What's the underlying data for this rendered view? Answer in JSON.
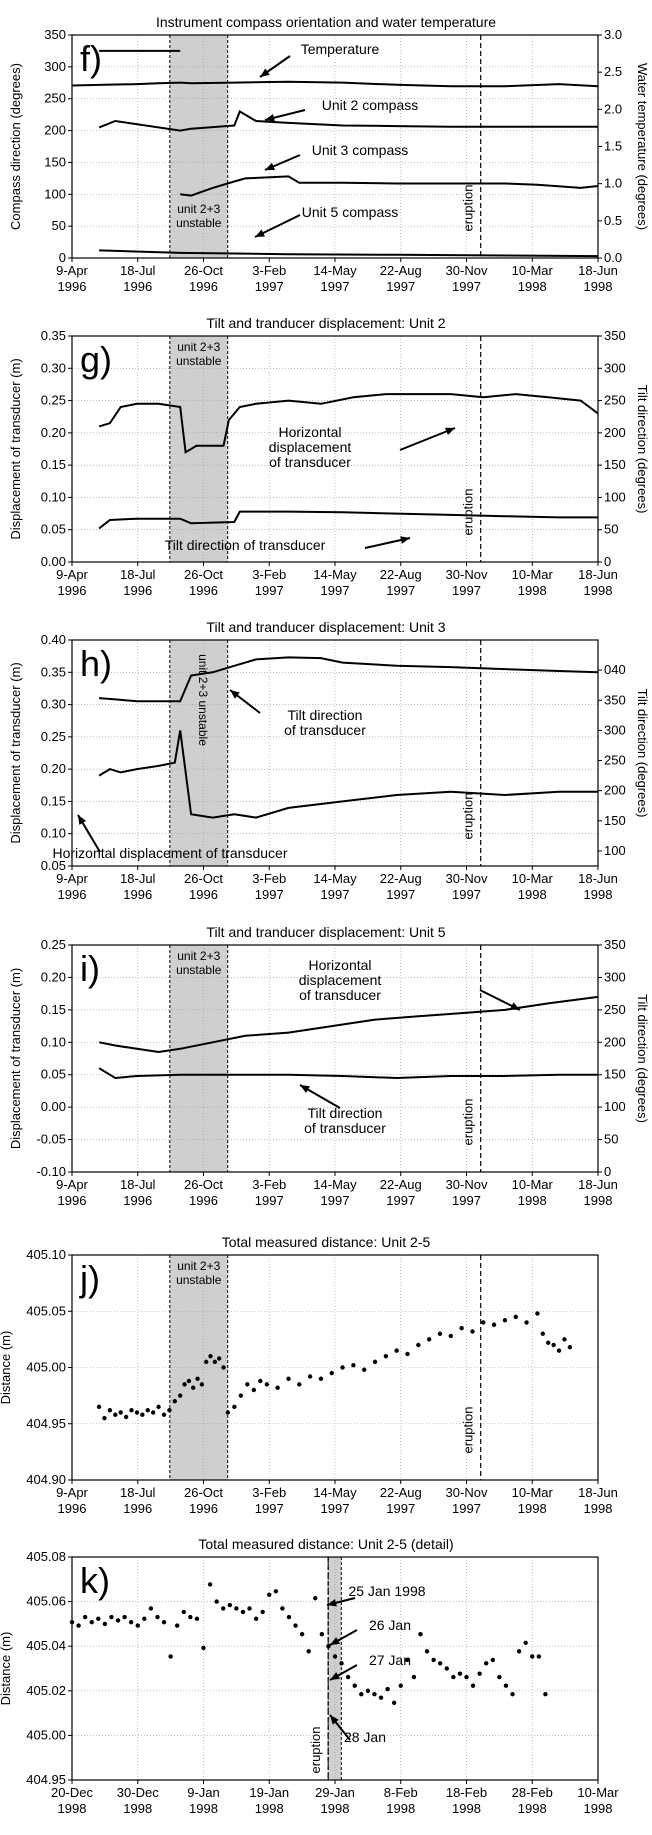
{
  "chart_data": [
    {
      "id": "f",
      "type": "line",
      "title": "Instrument compass orientation and water temperature",
      "panel_label": "f)",
      "ylabel": "Compass direction (degrees)",
      "ylabel_right": "Water temperature (degrees)",
      "ylim": [
        0,
        350
      ],
      "ylim_right": [
        0,
        3.0
      ],
      "y_ticks": [
        "0",
        "50",
        "100",
        "150",
        "200",
        "250",
        "300",
        "350"
      ],
      "y_ticks_right": [
        "0.0",
        "0.5",
        "1.0",
        "1.5",
        "2.0",
        "2.5",
        "3.0"
      ],
      "x_ticks": [
        [
          "9-Apr",
          "1996"
        ],
        [
          "18-Jul",
          "1996"
        ],
        [
          "26-Oct",
          "1996"
        ],
        [
          "3-Feb",
          "1997"
        ],
        [
          "14-May",
          "1997"
        ],
        [
          "22-Aug",
          "1997"
        ],
        [
          "30-Nov",
          "1997"
        ],
        [
          "10-Mar",
          "1998"
        ],
        [
          "18-Jun",
          "1998"
        ]
      ],
      "unstable_label": [
        "unit 2+3",
        "unstable"
      ],
      "eruption_label": "eruption",
      "annotations": [
        "Temperature",
        "Unit 2 compass",
        "Unit 3 compass",
        "Unit 5 compass"
      ],
      "series": [
        {
          "name": "Temperature",
          "axis": "right",
          "x": [
            0,
            30,
            60,
            80,
            100,
            110,
            150,
            200,
            250,
            300,
            350,
            400,
            450,
            486
          ],
          "y": [
            2.32,
            2.33,
            2.34,
            2.35,
            2.36,
            2.35,
            2.36,
            2.37,
            2.36,
            2.33,
            2.31,
            2.31,
            2.34,
            2.31
          ]
        },
        {
          "name": "Unit 2 compass",
          "axis": "left",
          "x": [
            25,
            40,
            100,
            110,
            150,
            155,
            170,
            200,
            250,
            300,
            350,
            400,
            486
          ],
          "y": [
            205,
            215,
            200,
            203,
            208,
            230,
            215,
            212,
            208,
            207,
            206,
            206,
            206
          ]
        },
        {
          "name": "Unit 3 compass",
          "axis": "left",
          "x": [
            100,
            110,
            130,
            150,
            160,
            200,
            210,
            250,
            300,
            350,
            400,
            430,
            470,
            486
          ],
          "y": [
            100,
            98,
            110,
            120,
            125,
            128,
            118,
            118,
            117,
            117,
            117,
            115,
            110,
            113
          ]
        },
        {
          "name": "Unit 5 compass",
          "axis": "left",
          "x": [
            25,
            100,
            200,
            300,
            400,
            486
          ],
          "y": [
            12,
            8,
            6,
            5,
            4,
            3
          ]
        },
        {
          "name": "",
          "axis": "left",
          "x": [
            25,
            100
          ],
          "y": [
            325,
            325
          ]
        }
      ]
    },
    {
      "id": "g",
      "type": "line",
      "title": "Tilt and tranducer displacement: Unit 2",
      "panel_label": "g)",
      "ylabel": "Displacement of transducer (m)",
      "ylabel_right": "Tilt direction (degrees)",
      "ylim": [
        0,
        0.35
      ],
      "ylim_right": [
        0,
        350
      ],
      "y_ticks": [
        "0.00",
        "0.05",
        "0.10",
        "0.15",
        "0.20",
        "0.25",
        "0.30",
        "0.35"
      ],
      "y_ticks_right": [
        "0",
        "50",
        "100",
        "150",
        "200",
        "250",
        "300",
        "350"
      ],
      "x_ticks": [
        [
          "9-Apr",
          "1996"
        ],
        [
          "18-Jul",
          "1996"
        ],
        [
          "26-Oct",
          "1996"
        ],
        [
          "3-Feb",
          "1997"
        ],
        [
          "14-May",
          "1997"
        ],
        [
          "22-Aug",
          "1997"
        ],
        [
          "30-Nov",
          "1997"
        ],
        [
          "10-Mar",
          "1998"
        ],
        [
          "18-Jun",
          "1998"
        ]
      ],
      "unstable_label": [
        "unit 2+3",
        "unstable"
      ],
      "eruption_label": "eruption",
      "annotations": [
        "Horizontal",
        "displacement",
        "of transducer",
        "Tilt direction of transducer"
      ],
      "series": [
        {
          "name": "Horizontal displacement of transducer",
          "axis": "left",
          "x": [
            25,
            35,
            45,
            60,
            80,
            100,
            105,
            115,
            140,
            145,
            155,
            170,
            200,
            230,
            260,
            290,
            320,
            350,
            380,
            410,
            440,
            470,
            486
          ],
          "y": [
            0.21,
            0.215,
            0.24,
            0.245,
            0.245,
            0.24,
            0.17,
            0.18,
            0.18,
            0.22,
            0.24,
            0.245,
            0.25,
            0.245,
            0.255,
            0.26,
            0.26,
            0.26,
            0.255,
            0.26,
            0.255,
            0.25,
            0.23
          ]
        },
        {
          "name": "Tilt direction of transducer",
          "axis": "left",
          "x": [
            25,
            35,
            60,
            100,
            110,
            150,
            155,
            200,
            250,
            300,
            350,
            400,
            450,
            486
          ],
          "y": [
            0.052,
            0.065,
            0.067,
            0.067,
            0.06,
            0.062,
            0.078,
            0.078,
            0.077,
            0.075,
            0.073,
            0.071,
            0.069,
            0.069
          ]
        }
      ]
    },
    {
      "id": "h",
      "type": "line",
      "title": "Tilt and tranducer displacement: Unit 3",
      "panel_label": "h)",
      "ylabel": "Displacement of transducer (m)",
      "ylabel_right": "Tilt direction (degrees)",
      "ylim": [
        0.05,
        0.4
      ],
      "y_ticks": [
        "0.05",
        "0.10",
        "0.15",
        "0.20",
        "0.25",
        "0.30",
        "0.35",
        "0.40"
      ],
      "y_ticks_right": [
        "100",
        "150",
        "200",
        "250",
        "300",
        "350",
        "040"
      ],
      "x_ticks": [
        [
          "9-Apr",
          "1996"
        ],
        [
          "18-Jul",
          "1996"
        ],
        [
          "26-Oct",
          "1996"
        ],
        [
          "3-Feb",
          "1997"
        ],
        [
          "14-May",
          "1997"
        ],
        [
          "22-Aug",
          "1997"
        ],
        [
          "30-Nov",
          "1997"
        ],
        [
          "10-Mar",
          "1998"
        ],
        [
          "18-Jun",
          "1998"
        ]
      ],
      "unstable_label": [
        "unit 2+3",
        "unstable"
      ],
      "eruption_label": "eruption",
      "annotations": [
        "Tilt direction",
        "of transducer",
        "Horizontal displacement of transducer"
      ],
      "series": [
        {
          "name": "Tilt direction of transducer",
          "axis": "left",
          "x": [
            25,
            40,
            60,
            80,
            100,
            110,
            130,
            150,
            170,
            200,
            230,
            250,
            300,
            350,
            400,
            450,
            486
          ],
          "y": [
            0.31,
            0.308,
            0.305,
            0.305,
            0.305,
            0.345,
            0.35,
            0.36,
            0.37,
            0.373,
            0.372,
            0.365,
            0.36,
            0.358,
            0.355,
            0.352,
            0.35
          ]
        },
        {
          "name": "Horizontal displacement of transducer",
          "axis": "left",
          "x": [
            25,
            35,
            45,
            60,
            80,
            95,
            100,
            110,
            130,
            150,
            170,
            200,
            250,
            300,
            350,
            400,
            450,
            486
          ],
          "y": [
            0.19,
            0.2,
            0.195,
            0.2,
            0.205,
            0.21,
            0.26,
            0.13,
            0.125,
            0.13,
            0.125,
            0.14,
            0.15,
            0.16,
            0.165,
            0.16,
            0.165,
            0.165
          ]
        }
      ]
    },
    {
      "id": "i",
      "type": "line",
      "title": "Tilt and tranducer displacement: Unit 5",
      "panel_label": "i)",
      "ylabel": "Displacement of transducer (m)",
      "ylabel_right": "Tilt direction (degrees)",
      "ylim": [
        -0.1,
        0.25
      ],
      "ylim_right": [
        0,
        350
      ],
      "y_ticks": [
        "-0.10",
        "-0.05",
        "0.00",
        "0.05",
        "0.10",
        "0.15",
        "0.20",
        "0.25"
      ],
      "y_ticks_right": [
        "0",
        "50",
        "100",
        "150",
        "200",
        "250",
        "300",
        "350"
      ],
      "x_ticks": [
        [
          "9-Apr",
          "1996"
        ],
        [
          "18-Jul",
          "1996"
        ],
        [
          "26-Oct",
          "1996"
        ],
        [
          "3-Feb",
          "1997"
        ],
        [
          "14-May",
          "1997"
        ],
        [
          "22-Aug",
          "1997"
        ],
        [
          "30-Nov",
          "1997"
        ],
        [
          "10-Mar",
          "1998"
        ],
        [
          "18-Jun",
          "1998"
        ]
      ],
      "unstable_label": [
        "unit 2+3",
        "unstable"
      ],
      "eruption_label": "eruption",
      "annotations": [
        "Horizontal",
        "displacement",
        "of transducer",
        "Tilt direction",
        "of transducer"
      ],
      "series": [
        {
          "name": "Horizontal displacement of transducer",
          "axis": "left",
          "x": [
            25,
            40,
            60,
            80,
            100,
            130,
            160,
            200,
            240,
            280,
            320,
            360,
            400,
            440,
            486
          ],
          "y": [
            0.1,
            0.095,
            0.09,
            0.085,
            0.09,
            0.1,
            0.11,
            0.115,
            0.125,
            0.135,
            0.14,
            0.145,
            0.15,
            0.16,
            0.17
          ]
        },
        {
          "name": "Tilt direction of transducer",
          "axis": "left",
          "x": [
            25,
            40,
            60,
            100,
            150,
            200,
            250,
            300,
            350,
            400,
            450,
            486
          ],
          "y": [
            0.06,
            0.045,
            0.048,
            0.05,
            0.05,
            0.05,
            0.048,
            0.045,
            0.048,
            0.048,
            0.05,
            0.05
          ]
        }
      ]
    },
    {
      "id": "j",
      "type": "scatter",
      "title": "Total measured distance: Unit 2-5",
      "panel_label": "j)",
      "ylabel": "Distance (m)",
      "ylim": [
        404.9,
        405.1
      ],
      "y_ticks": [
        "404.90",
        "404.95",
        "405.00",
        "405.05",
        "405.10"
      ],
      "x_ticks": [
        [
          "9-Apr",
          "1996"
        ],
        [
          "18-Jul",
          "1996"
        ],
        [
          "26-Oct",
          "1996"
        ],
        [
          "3-Feb",
          "1997"
        ],
        [
          "14-May",
          "1997"
        ],
        [
          "22-Aug",
          "1997"
        ],
        [
          "30-Nov",
          "1997"
        ],
        [
          "10-Mar",
          "1998"
        ],
        [
          "18-Jun",
          "1998"
        ]
      ],
      "unstable_label": [
        "unit 2+3",
        "unstable"
      ],
      "eruption_label": "eruption",
      "series": [
        {
          "name": "",
          "x": [
            25,
            30,
            35,
            40,
            45,
            50,
            55,
            60,
            65,
            70,
            75,
            80,
            85,
            90,
            95,
            100,
            104,
            108,
            112,
            116,
            120,
            124,
            128,
            132,
            136,
            140,
            144,
            150,
            156,
            162,
            168,
            174,
            180,
            190,
            200,
            210,
            220,
            230,
            240,
            250,
            260,
            270,
            280,
            290,
            300,
            310,
            320,
            330,
            340,
            350,
            360,
            370,
            380,
            390,
            400,
            410,
            420,
            430,
            435,
            440,
            445,
            450,
            455,
            460
          ],
          "y": [
            404.965,
            404.955,
            404.962,
            404.958,
            404.96,
            404.956,
            404.962,
            404.96,
            404.958,
            404.962,
            404.96,
            404.965,
            404.958,
            404.962,
            404.97,
            404.975,
            404.985,
            404.988,
            404.982,
            404.99,
            404.985,
            405.005,
            405.01,
            405.005,
            405.008,
            405.0,
            404.96,
            404.965,
            404.975,
            404.985,
            404.98,
            404.988,
            404.985,
            404.982,
            404.99,
            404.985,
            404.992,
            404.99,
            404.995,
            405.0,
            405.002,
            404.998,
            405.005,
            405.01,
            405.015,
            405.012,
            405.02,
            405.025,
            405.03,
            405.028,
            405.035,
            405.032,
            405.04,
            405.038,
            405.042,
            405.045,
            405.04,
            405.048,
            405.03,
            405.022,
            405.02,
            405.015,
            405.025,
            405.018
          ]
        }
      ]
    },
    {
      "id": "k",
      "type": "scatter",
      "title": "Total measured distance: Unit 2-5 (detail)",
      "panel_label": "k)",
      "ylabel": "Distance (m)",
      "ylim": [
        404.95,
        405.08
      ],
      "y_ticks": [
        "404.95",
        "405.00",
        "405.02",
        "405.04",
        "405.06",
        "405.08"
      ],
      "x_ticks": [
        [
          "20-Dec",
          "1998"
        ],
        [
          "30-Dec",
          "1998"
        ],
        [
          "9-Jan",
          "1998"
        ],
        [
          "19-Jan",
          "1998"
        ],
        [
          "29-Jan",
          "1998"
        ],
        [
          "8-Feb",
          "1998"
        ],
        [
          "18-Feb",
          "1998"
        ],
        [
          "28-Feb",
          "1998"
        ],
        [
          "10-Mar",
          "1998"
        ]
      ],
      "eruption_label": "eruption",
      "annotations": [
        "25 Jan 1998",
        "26 Jan",
        "27 Jan",
        "28 Jan"
      ],
      "series": [
        {
          "name": "",
          "x": [
            0,
            1,
            2,
            3,
            4,
            5,
            6,
            7,
            8,
            9,
            10,
            11,
            12,
            13,
            14,
            15,
            16,
            17,
            18,
            19,
            20,
            21,
            22,
            23,
            24,
            25,
            26,
            27,
            28,
            29,
            30,
            31,
            32,
            33,
            34,
            35,
            36,
            37,
            38,
            39,
            40,
            41,
            42,
            43,
            44,
            45,
            46,
            47,
            48,
            49,
            50,
            51,
            52,
            53,
            54,
            55,
            56,
            57,
            58,
            59,
            60,
            61,
            62,
            63,
            64,
            65,
            66,
            67,
            68,
            69,
            70,
            71,
            72
          ],
          "y": [
            405.042,
            405.04,
            405.045,
            405.042,
            405.044,
            405.041,
            405.045,
            405.043,
            405.045,
            405.042,
            405.04,
            405.044,
            405.05,
            405.045,
            405.042,
            405.022,
            405.04,
            405.048,
            405.045,
            405.044,
            405.027,
            405.064,
            405.054,
            405.05,
            405.052,
            405.05,
            405.048,
            405.05,
            405.044,
            405.048,
            405.058,
            405.06,
            405.05,
            405.045,
            405.04,
            405.035,
            405.025,
            405.056,
            405.035,
            405.028,
            405.022,
            405.018,
            405.01,
            405.005,
            405.0,
            405.002,
            405.0,
            404.998,
            405.003,
            404.995,
            405.005,
            405.02,
            405.01,
            405.035,
            405.025,
            405.02,
            405.018,
            405.015,
            405.01,
            405.012,
            405.01,
            405.005,
            405.012,
            405.018,
            405.02,
            405.01,
            405.005,
            405.0,
            405.025,
            405.03,
            405.022,
            405.022,
            405.0
          ]
        }
      ]
    }
  ]
}
